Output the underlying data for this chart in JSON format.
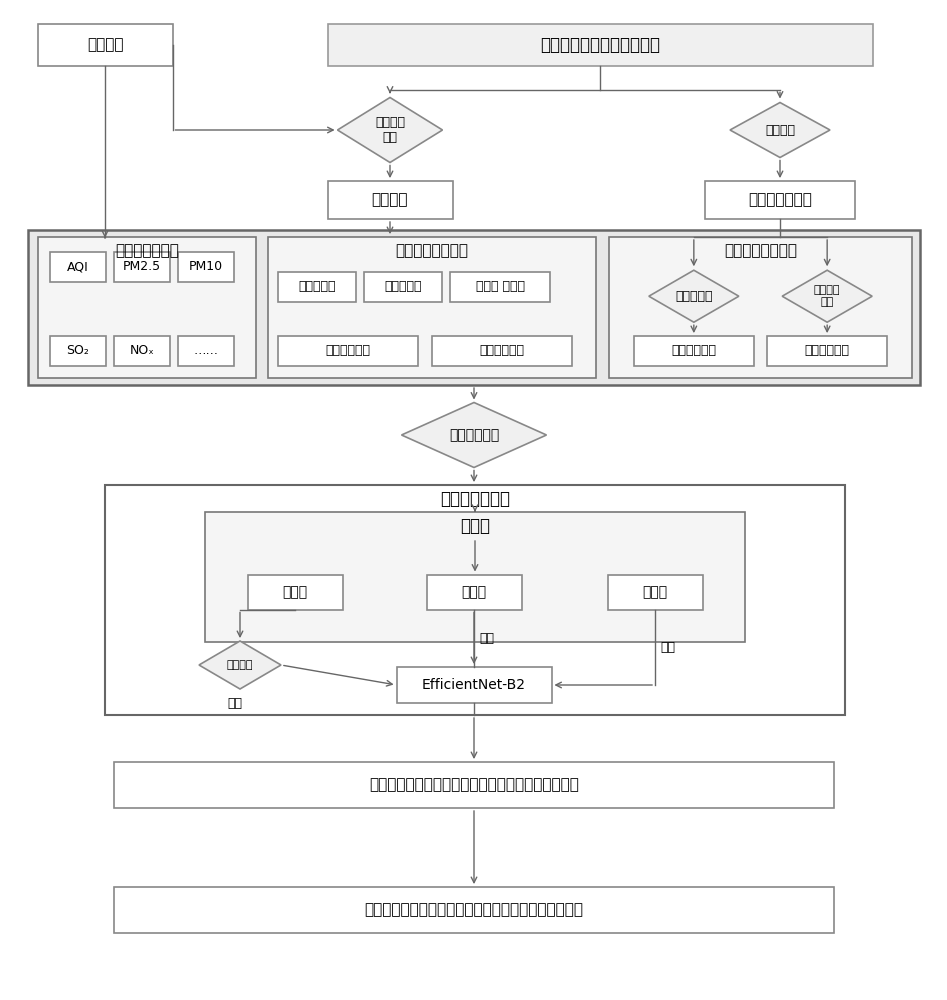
{
  "bg_color": "#ffffff",
  "title": "中高分辨率的遥感影像数据",
  "box1_text": "监测站点",
  "diamond1_text": "地理坐标\n匹配",
  "box2_text": "图像剪裁",
  "diamond2_text": "辐射定标",
  "box3_text": "表观反射率影像",
  "outer_box1_title": "各污染物监测値",
  "outer_box2_title": "图像特征指标提取",
  "outer_box3_title": "光谱特征指标提取",
  "small_boxes_col1": [
    "AQI",
    "PM2.5",
    "PM10",
    "SO₂",
    "NOₓ",
    "……"
  ],
  "c2_r1_box1": "图像对比度",
  "c2_r1_box2": "灰度平均値",
  "c2_r1_box3": "标准差 协方差",
  "c2_r2_box1": "图像边缘特征",
  "c2_r2_box2": "图像纹理特征",
  "diamond3_col3_left": "相关性分析",
  "diamond3_col3_right": "光谱特征\n分析",
  "col3_box_left": "敏感波段选取",
  "col3_box_right": "污染指数构建",
  "diamond_data": "数据一一对应",
  "outer_network_title": "网络学习、建模",
  "dataset_title": "数据集",
  "train_box": "训练集",
  "test_box": "测试集",
  "verify_box": "验证集",
  "diamond_augment": "数据增强",
  "efficientnet_box": "EfficientNet-B2",
  "label_train": "训练",
  "label_test": "测试",
  "label_verify": "验证",
  "output_box1": "基于中高分辨率遥感影像的城区霖污染指数反演模型",
  "output_box2": "基于中高分辨率遥感影像的城区霖污染指数浓度分布图"
}
